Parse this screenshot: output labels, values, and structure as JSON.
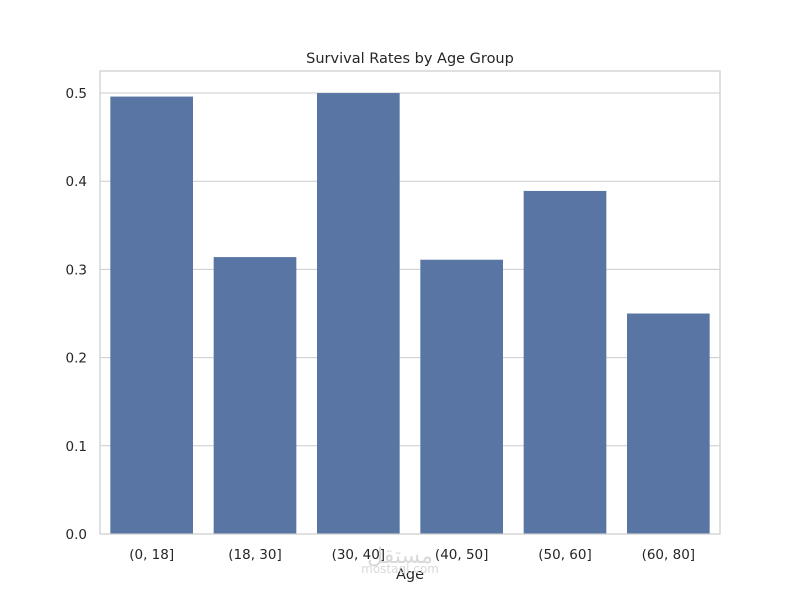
{
  "chart_data": {
    "type": "bar",
    "title": "Survival Rates by Age Group",
    "xlabel": "Age",
    "ylabel": "",
    "categories": [
      "(0, 18]",
      "(18, 30]",
      "(30, 40]",
      "(40, 50]",
      "(50, 60]",
      "(60, 80]"
    ],
    "values": [
      0.496,
      0.314,
      0.5,
      0.311,
      0.389,
      0.25
    ],
    "ylim": [
      0,
      0.525
    ],
    "yticks": [
      "0.0",
      "0.1",
      "0.2",
      "0.3",
      "0.4",
      "0.5"
    ],
    "grid": true,
    "legend": "none",
    "bar_color": "#5875a4",
    "grid_color": "#cccccc",
    "axes_edge_color": "#cccccc"
  },
  "watermark": {
    "arabic": "مستقل",
    "latin": "mostaql.com"
  }
}
